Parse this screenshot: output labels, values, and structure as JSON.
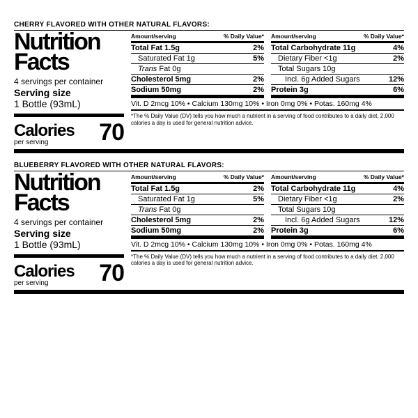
{
  "panels": [
    {
      "flavor": "CHERRY FLAVORED WITH OTHER NATURAL FLAVORS:"
    },
    {
      "flavor": "BLUEBERRY FLAVORED WITH OTHER NATURAL FLAVORS:"
    }
  ],
  "common": {
    "title1": "Nutrition",
    "title2": "Facts",
    "servings": "4 servings per container",
    "servingSize": "Serving size",
    "servingVal": "1 Bottle (93mL)",
    "caloriesLabel": "Calories",
    "perServing": "per serving",
    "caloriesVal": "70",
    "hdrAmt": "Amount/serving",
    "hdrDV": "% Daily Value*",
    "col1": [
      {
        "n": "Total Fat",
        "v": "1.5g",
        "dv": "2%",
        "b": true
      },
      {
        "n": "Saturated Fat",
        "v": "1g",
        "dv": "5%",
        "i": true
      },
      {
        "n2": "Trans",
        "n": "Fat",
        "v": "0g",
        "dv": "",
        "i": true,
        "it": true
      },
      {
        "n": "Cholesterol",
        "v": "5mg",
        "dv": "2%",
        "b": true
      },
      {
        "n": "Sodium",
        "v": "50mg",
        "dv": "2%",
        "b": true,
        "last": true
      }
    ],
    "col2": [
      {
        "n": "Total Carbohydrate",
        "v": "11g",
        "dv": "4%",
        "b": true
      },
      {
        "n": "Dietary Fiber",
        "v": "<1g",
        "dv": "2%",
        "i": true
      },
      {
        "n": "Total Sugars",
        "v": "10g",
        "dv": "",
        "i": true
      },
      {
        "n": "Incl. 6g Added Sugars",
        "v": "",
        "dv": "12%",
        "i": true,
        "i2": true
      },
      {
        "n": "Protein",
        "v": "3g",
        "dv": "6%",
        "b": true,
        "last": true
      }
    ],
    "vitamins": "Vit. D 2mcg 10% • Calcium 130mg 10% • Iron 0mg 0% • Potas. 160mg 4%",
    "footnote": "*The % Daily Value (DV) tells you how much a nutrient in a serving of food contributes to a daily diet. 2,000 calories a day is used for general nutrition advice."
  }
}
